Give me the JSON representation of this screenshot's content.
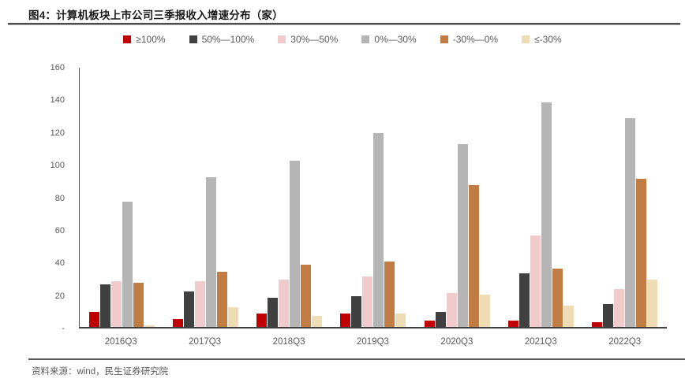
{
  "header": {
    "title": "图4：计算机板块上市公司三季报收入增速分布（家）"
  },
  "footer": {
    "source": "资料来源：wind，民生证券研究院"
  },
  "chart_data": {
    "type": "bar",
    "title": "计算机板块上市公司三季报收入增速分布（家）",
    "categories": [
      "2016Q3",
      "2017Q3",
      "2018Q3",
      "2019Q3",
      "2020Q3",
      "2021Q3",
      "2022Q3"
    ],
    "series": [
      {
        "name": "≥100%",
        "color": "#c00000",
        "values": [
          9,
          5,
          8,
          8,
          4,
          4,
          3
        ]
      },
      {
        "name": "50%—100%",
        "color": "#404040",
        "values": [
          26,
          22,
          18,
          19,
          9,
          33,
          14
        ]
      },
      {
        "name": "30%—50%",
        "color": "#f1cbcb",
        "values": [
          28,
          28,
          29,
          31,
          21,
          56,
          23
        ]
      },
      {
        "name": "0%—30%",
        "color": "#b5b5b5",
        "values": [
          77,
          92,
          102,
          119,
          112,
          138,
          128
        ]
      },
      {
        "name": "-30%—0%",
        "color": "#c07c43",
        "values": [
          27,
          34,
          38,
          40,
          87,
          36,
          91
        ]
      },
      {
        "name": "≤-30%",
        "color": "#eedcb5",
        "values": [
          1,
          12,
          7,
          8,
          20,
          13,
          29
        ]
      }
    ],
    "xlabel": "",
    "ylabel": "",
    "ylim": [
      0,
      160
    ],
    "ytick_labels_top_down": [
      "160",
      "140",
      "120",
      "100",
      "80",
      "60",
      "40",
      "20",
      "-"
    ],
    "grid": false,
    "legend_position": "top"
  }
}
